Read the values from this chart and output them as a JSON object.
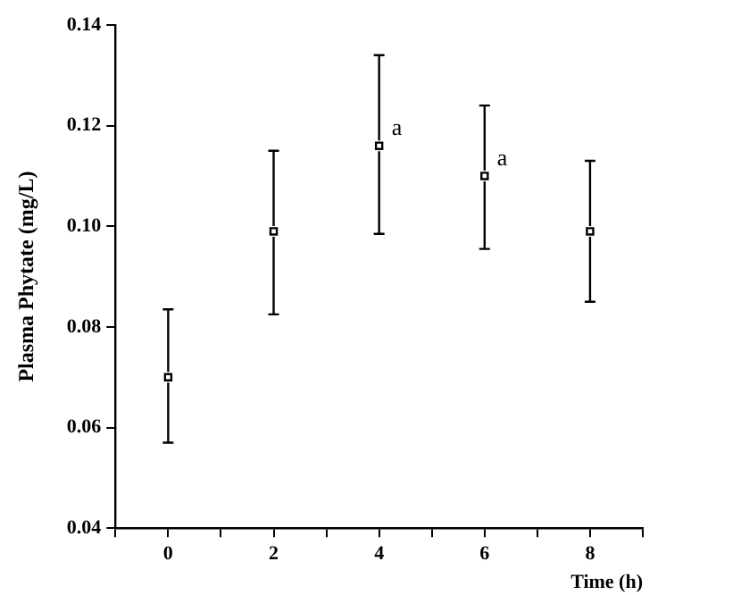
{
  "chart_data": {
    "type": "scatter",
    "xlabel": "Time (h)",
    "ylabel": "Plasma Phytate (mg/L)",
    "x": [
      0,
      2,
      4,
      6,
      8
    ],
    "series": [
      {
        "color": "#000000",
        "values": [
          0.07,
          0.099,
          0.116,
          0.11,
          0.099
        ],
        "errors": [
          [
            0.057,
            0.0835
          ],
          [
            0.0825,
            0.115
          ],
          [
            0.0985,
            0.134
          ],
          [
            0.0955,
            0.124
          ],
          [
            0.085,
            0.113
          ]
        ]
      }
    ],
    "xlim": [
      -1,
      9
    ],
    "xticks": [
      {
        "value": -1,
        "label": null
      },
      0,
      {
        "value": 1,
        "label": null
      },
      2,
      {
        "value": 3,
        "label": null
      },
      4,
      {
        "value": 5,
        "label": null
      },
      6,
      {
        "value": 7,
        "label": null
      },
      8,
      {
        "value": 9,
        "label": null
      }
    ],
    "ylim": [
      0.04,
      0.14
    ],
    "yticks": [
      {
        "value": 0.04,
        "label": "0.04"
      },
      {
        "value": 0.06,
        "label": "0.06"
      },
      {
        "value": 0.08,
        "label": "0.08"
      },
      {
        "value": 0.1,
        "label": "0.10"
      },
      {
        "value": 0.12,
        "label": "0.12"
      },
      {
        "value": 0.14,
        "label": "0.14"
      }
    ],
    "annotations": [
      {
        "text": "a",
        "x": 4,
        "y": 0.116
      },
      {
        "text": "a",
        "x": 6,
        "y": 0.11
      }
    ],
    "marker": "square",
    "grid": false,
    "legend": false
  }
}
